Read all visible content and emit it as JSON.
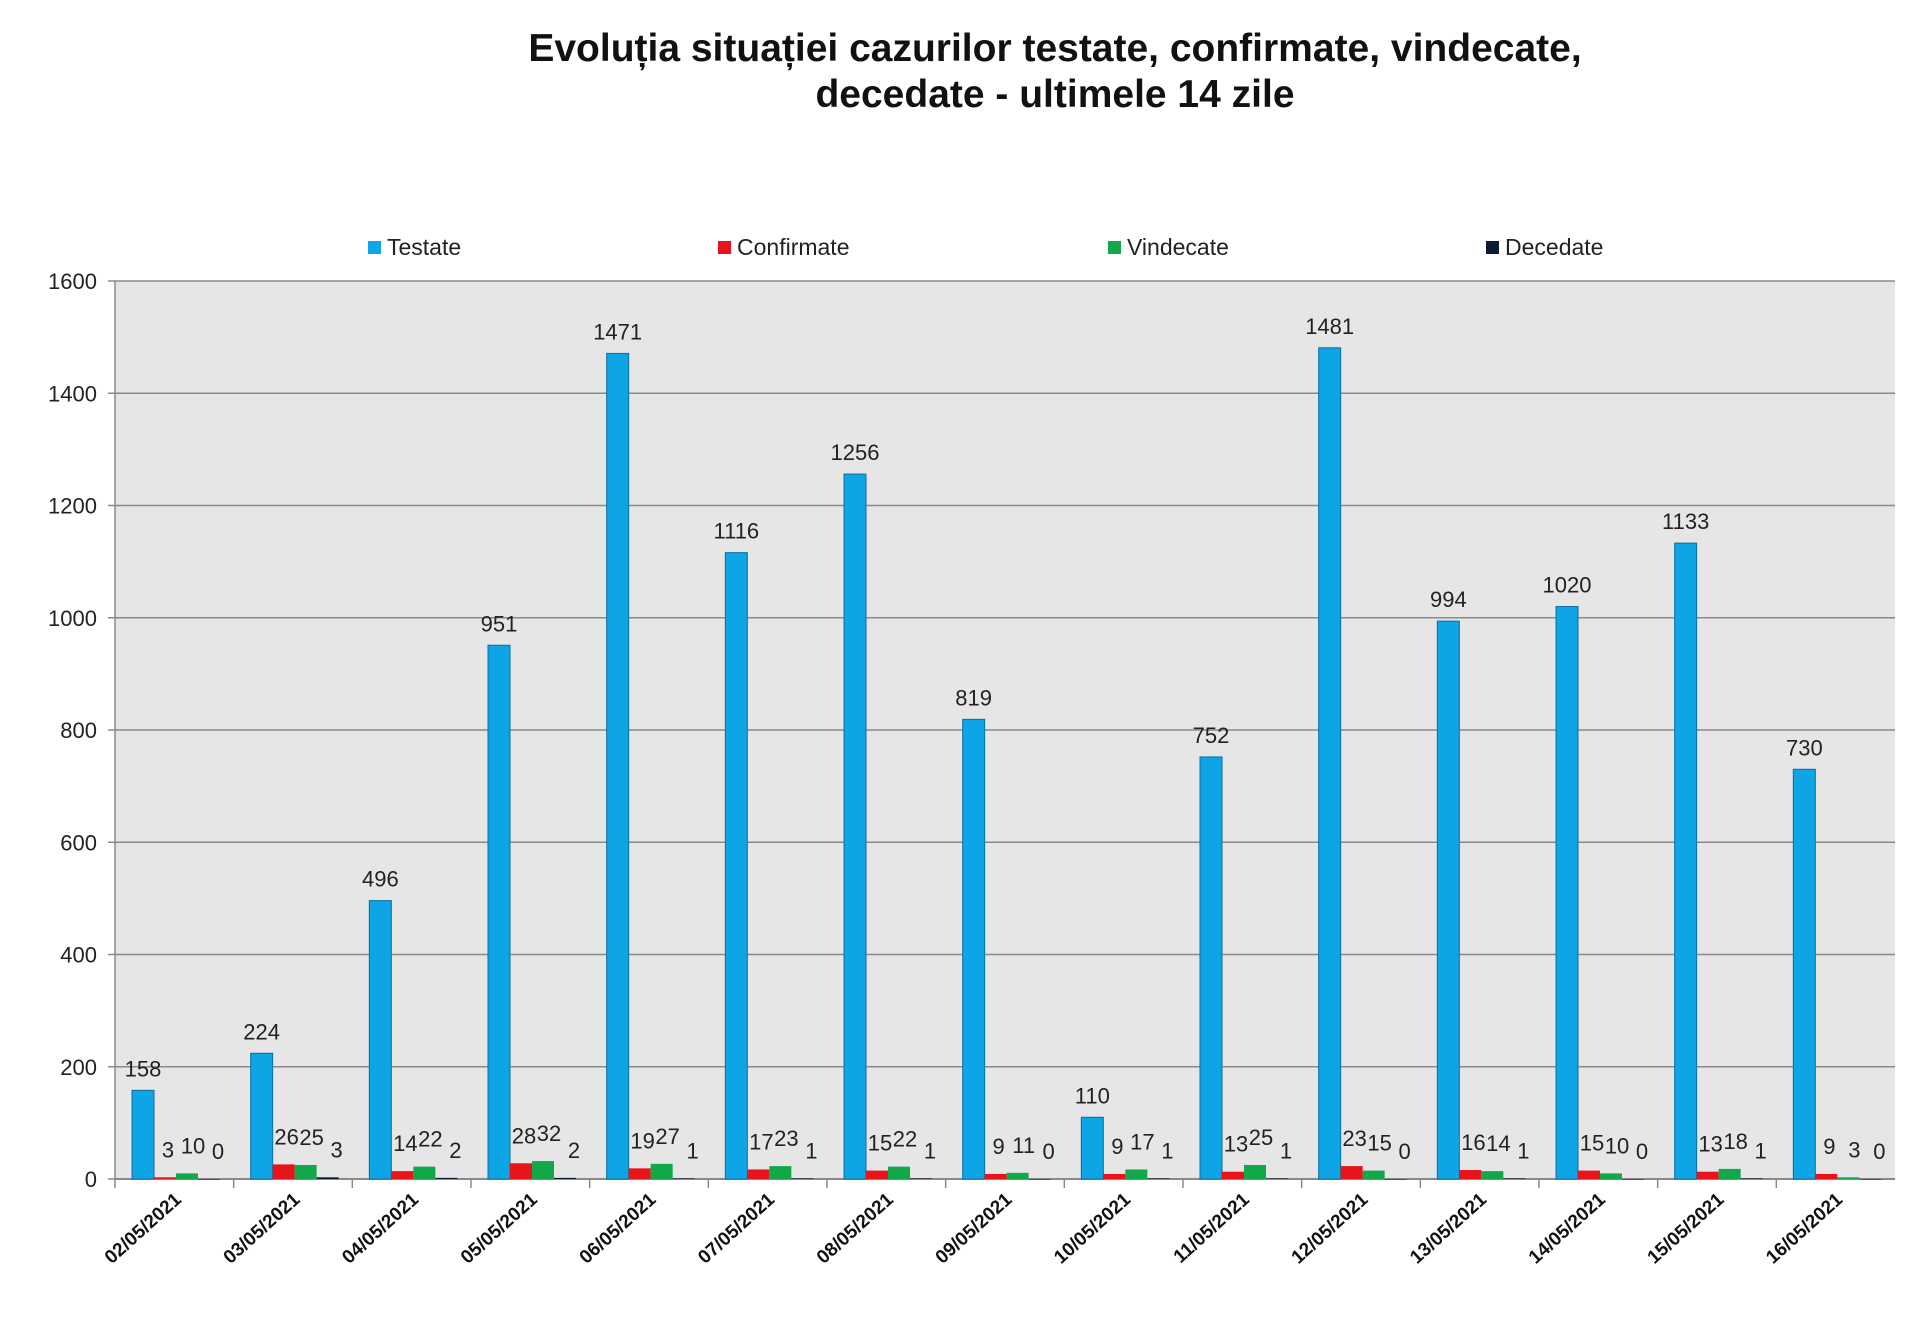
{
  "chart_data": {
    "type": "bar",
    "title_line1": "Evoluția situației cazurilor testate, confirmate, vindecate,",
    "title_line2": "decedate -  ultimele 14 zile",
    "xlabel": "",
    "ylabel": "",
    "ylim": [
      0,
      1600
    ],
    "yticks": [
      0,
      200,
      400,
      600,
      800,
      1000,
      1200,
      1400,
      1600
    ],
    "grid": true,
    "legend_position": "top",
    "categories": [
      "02/05/2021",
      "03/05/2021",
      "04/05/2021",
      "05/05/2021",
      "06/05/2021",
      "07/05/2021",
      "08/05/2021",
      "09/05/2021",
      "10/05/2021",
      "11/05/2021",
      "12/05/2021",
      "13/05/2021",
      "14/05/2021",
      "15/05/2021",
      "16/05/2021"
    ],
    "series": [
      {
        "name": "Testate",
        "color": "#0ea5e6",
        "values": [
          158,
          224,
          496,
          951,
          1471,
          1116,
          1256,
          819,
          110,
          752,
          1481,
          994,
          1020,
          1133,
          730
        ]
      },
      {
        "name": "Confirmate",
        "color": "#e8141b",
        "values": [
          3,
          26,
          14,
          28,
          19,
          17,
          15,
          9,
          9,
          13,
          23,
          16,
          15,
          13,
          9
        ]
      },
      {
        "name": "Vindecate",
        "color": "#12a84a",
        "values": [
          10,
          25,
          22,
          32,
          27,
          23,
          22,
          11,
          17,
          25,
          15,
          14,
          10,
          18,
          3
        ]
      },
      {
        "name": "Decedate",
        "color": "#0d1a33",
        "values": [
          0,
          3,
          2,
          2,
          1,
          1,
          1,
          0,
          1,
          1,
          0,
          1,
          0,
          1,
          0
        ]
      }
    ]
  }
}
